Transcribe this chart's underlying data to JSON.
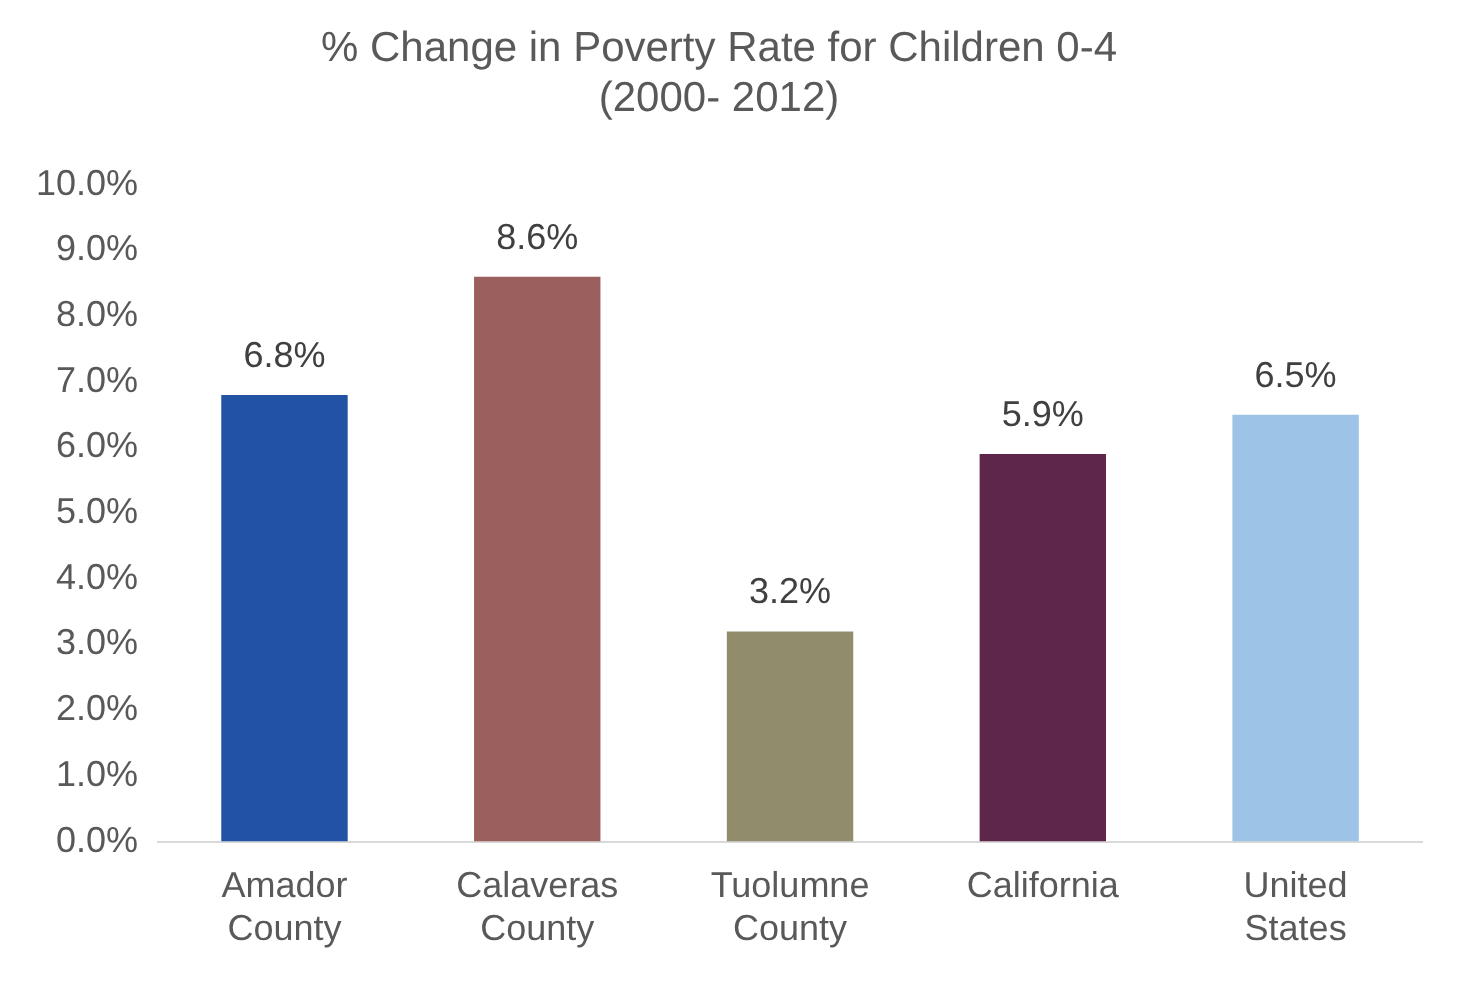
{
  "chart_data": {
    "type": "bar",
    "title": "% Change in Poverty Rate for Children 0-4\n(2000- 2012)",
    "categories": [
      "Amador County",
      "Calaveras County",
      "Tuolumne County",
      "California",
      "United States"
    ],
    "values": [
      6.8,
      8.6,
      3.2,
      5.9,
      6.5
    ],
    "colors": [
      "#2152a3",
      "#9b5f5d",
      "#918d6c",
      "#5e264b",
      "#9dc3e6"
    ],
    "value_labels": [
      "6.8%",
      "8.6%",
      "3.2%",
      "5.9%",
      "6.5%"
    ],
    "ylim": [
      0,
      10
    ],
    "yticks": [
      {
        "value": 0,
        "label": "0.0%"
      },
      {
        "value": 1,
        "label": "1.0%"
      },
      {
        "value": 2,
        "label": "2.0%"
      },
      {
        "value": 3,
        "label": "3.0%"
      },
      {
        "value": 4,
        "label": "4.0%"
      },
      {
        "value": 5,
        "label": "5.0%"
      },
      {
        "value": 6,
        "label": "6.0%"
      },
      {
        "value": 7,
        "label": "7.0%"
      },
      {
        "value": 8,
        "label": "8.0%"
      },
      {
        "value": 9,
        "label": "9.0%"
      },
      {
        "value": 10,
        "label": "10.0%"
      }
    ],
    "grid": false,
    "legend": false
  }
}
